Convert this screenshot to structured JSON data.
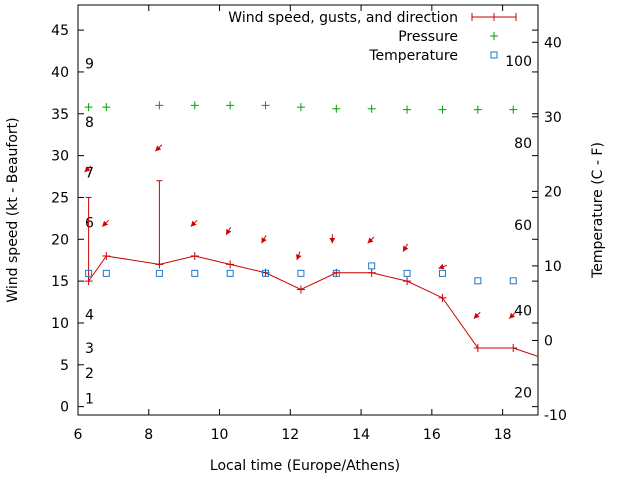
{
  "chart_data": {
    "type": "line",
    "xlabel": "Local time (Europe/Athens)",
    "ylabel": "Wind speed (kt - Beaufort)",
    "y2label": "Temperature (C - F)",
    "xlim": [
      6,
      19
    ],
    "ylim": [
      -1,
      48
    ],
    "y2lim": [
      -10,
      45
    ],
    "x_ticks": [
      "6",
      "8",
      "10",
      "12",
      "14",
      "16",
      "18"
    ],
    "y_ticks": [
      "0",
      "5",
      "10",
      "15",
      "20",
      "25",
      "30",
      "35",
      "40",
      "45"
    ],
    "y2_ticks": [
      "-10",
      "0",
      "10",
      "20",
      "30",
      "40"
    ],
    "beaufort_labels": [
      {
        "text": "1",
        "y": 1
      },
      {
        "text": "2",
        "y": 4
      },
      {
        "text": "3",
        "y": 7
      },
      {
        "text": "4",
        "y": 11
      },
      {
        "text": "6",
        "y": 22
      },
      {
        "text": "7",
        "y": 28
      },
      {
        "text": "8",
        "y": 34
      },
      {
        "text": "9",
        "y": 41
      }
    ],
    "fahrenheit_labels": [
      {
        "text": "20",
        "y": -7
      },
      {
        "text": "40",
        "y": 4
      },
      {
        "text": "60",
        "y": 15.5
      },
      {
        "text": "80",
        "y": 26.5
      },
      {
        "text": "100",
        "y": 37.5
      }
    ],
    "legend_placement": "top-right",
    "series": [
      {
        "name": "Wind speed, gusts, and direction",
        "color": "#cc0000",
        "x": [
          6.3,
          6.8,
          8.3,
          9.3,
          10.3,
          11.3,
          12.3,
          13.3,
          14.3,
          15.3,
          16.3,
          17.3,
          18.3,
          19.0
        ],
        "y": [
          15,
          18,
          17,
          18,
          17,
          16,
          14,
          16,
          16,
          15,
          13,
          7,
          7,
          6
        ],
        "gusts": [
          {
            "x": 6.3,
            "y": 25
          },
          {
            "x": 8.3,
            "y": 27
          }
        ],
        "directions_deg": [
          45,
          45,
          45,
          45,
          60,
          60,
          70,
          90,
          45,
          60,
          20,
          45,
          45
        ]
      },
      {
        "name": "Pressure",
        "color": "#00a000",
        "x": [
          6.3,
          6.8,
          8.3,
          9.3,
          10.3,
          11.3,
          12.3,
          13.3,
          14.3,
          15.3,
          16.3,
          17.3,
          18.3
        ],
        "y": [
          35.8,
          35.8,
          36.0,
          36.0,
          36.0,
          36.0,
          35.8,
          35.6,
          35.6,
          35.5,
          35.5,
          35.5,
          35.5
        ]
      },
      {
        "name": "Temperature",
        "color": "#1f78c8",
        "x": [
          6.3,
          6.8,
          8.3,
          9.3,
          10.3,
          11.3,
          12.3,
          13.3,
          14.3,
          15.3,
          16.3,
          17.3,
          18.3
        ],
        "y2": [
          9,
          9,
          9,
          9,
          9,
          9,
          9,
          9,
          10,
          9,
          9,
          8,
          8
        ]
      }
    ]
  }
}
